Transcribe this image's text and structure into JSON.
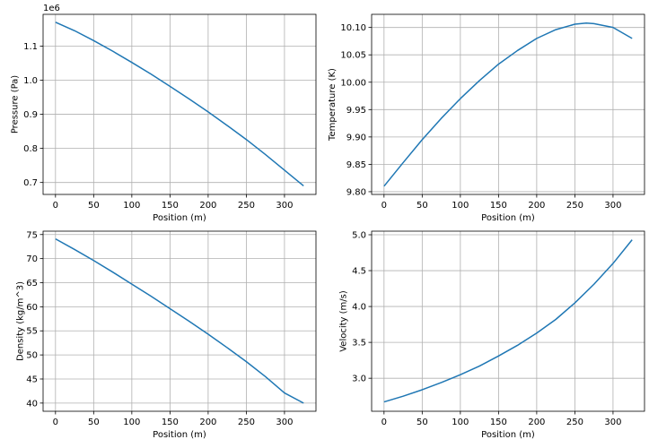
{
  "chart_data": [
    {
      "type": "line",
      "title": "",
      "xlabel": "Position (m)",
      "ylabel": "Pressure (Pa)",
      "y_offset_label": "1e6",
      "xlim": [
        -16.25,
        341.25
      ],
      "ylim": [
        0.665,
        1.193
      ],
      "x_ticks": [
        0,
        50,
        100,
        150,
        200,
        250,
        300
      ],
      "x_tick_labels": [
        "0",
        "50",
        "100",
        "150",
        "200",
        "250",
        "300"
      ],
      "y_ticks": [
        0.7,
        0.8,
        0.9,
        1.0,
        1.1
      ],
      "y_tick_labels": [
        "0.7",
        "0.8",
        "0.9",
        "1.0",
        "1.1"
      ],
      "grid": true,
      "color": "#1f77b4",
      "series": [
        {
          "x": [
            0,
            25,
            50,
            75,
            100,
            125,
            150,
            175,
            200,
            225,
            250,
            275,
            300,
            325
          ],
          "y": [
            1.17,
            1.145,
            1.116,
            1.085,
            1.052,
            1.018,
            0.982,
            0.945,
            0.907,
            0.867,
            0.826,
            0.782,
            0.736,
            0.69
          ]
        }
      ]
    },
    {
      "type": "line",
      "title": "",
      "xlabel": "Position (m)",
      "ylabel": "Temperature (K)",
      "xlim": [
        -16.25,
        341.25
      ],
      "ylim": [
        9.795,
        10.124
      ],
      "x_ticks": [
        0,
        50,
        100,
        150,
        200,
        250,
        300
      ],
      "x_tick_labels": [
        "0",
        "50",
        "100",
        "150",
        "200",
        "250",
        "300"
      ],
      "y_ticks": [
        9.8,
        9.85,
        9.9,
        9.95,
        10.0,
        10.05,
        10.1
      ],
      "y_tick_labels": [
        "9.80",
        "9.85",
        "9.90",
        "9.95",
        "10.00",
        "10.05",
        "10.10"
      ],
      "grid": true,
      "color": "#1f77b4",
      "series": [
        {
          "x": [
            0,
            25,
            50,
            75,
            100,
            125,
            150,
            175,
            200,
            225,
            250,
            265,
            275,
            300,
            325
          ],
          "y": [
            9.81,
            9.853,
            9.895,
            9.934,
            9.97,
            10.003,
            10.033,
            10.058,
            10.08,
            10.096,
            10.106,
            10.108,
            10.107,
            10.1,
            10.08
          ]
        }
      ]
    },
    {
      "type": "line",
      "title": "",
      "xlabel": "Position (m)",
      "ylabel": "Density (kg/m^3)",
      "xlim": [
        -16.25,
        341.25
      ],
      "ylim": [
        38.3,
        75.7
      ],
      "x_ticks": [
        0,
        50,
        100,
        150,
        200,
        250,
        300
      ],
      "x_tick_labels": [
        "0",
        "50",
        "100",
        "150",
        "200",
        "250",
        "300"
      ],
      "y_ticks": [
        40,
        45,
        50,
        55,
        60,
        65,
        70,
        75
      ],
      "y_tick_labels": [
        "40",
        "45",
        "50",
        "55",
        "60",
        "65",
        "70",
        "75"
      ],
      "grid": true,
      "color": "#1f77b4",
      "series": [
        {
          "x": [
            0,
            25,
            50,
            75,
            100,
            125,
            150,
            175,
            200,
            225,
            250,
            275,
            300,
            325
          ],
          "y": [
            74.1,
            71.9,
            69.6,
            67.2,
            64.7,
            62.2,
            59.6,
            57.0,
            54.3,
            51.5,
            48.6,
            45.5,
            42.1,
            40.0
          ]
        }
      ]
    },
    {
      "type": "line",
      "title": "",
      "xlabel": "Position (m)",
      "ylabel": "Velocity (m/s)",
      "xlim": [
        -16.25,
        341.25
      ],
      "ylim": [
        2.54,
        5.05
      ],
      "x_ticks": [
        0,
        50,
        100,
        150,
        200,
        250,
        300
      ],
      "x_tick_labels": [
        "0",
        "50",
        "100",
        "150",
        "200",
        "250",
        "300"
      ],
      "y_ticks": [
        3.0,
        3.5,
        4.0,
        4.5,
        5.0
      ],
      "y_tick_labels": [
        "3.0",
        "3.5",
        "4.0",
        "4.5",
        "5.0"
      ],
      "grid": true,
      "color": "#1f77b4",
      "series": [
        {
          "x": [
            0,
            25,
            50,
            75,
            100,
            125,
            150,
            175,
            200,
            225,
            250,
            275,
            300,
            325
          ],
          "y": [
            2.67,
            2.75,
            2.84,
            2.94,
            3.05,
            3.17,
            3.31,
            3.46,
            3.63,
            3.82,
            4.05,
            4.31,
            4.6,
            4.93
          ]
        }
      ]
    }
  ]
}
